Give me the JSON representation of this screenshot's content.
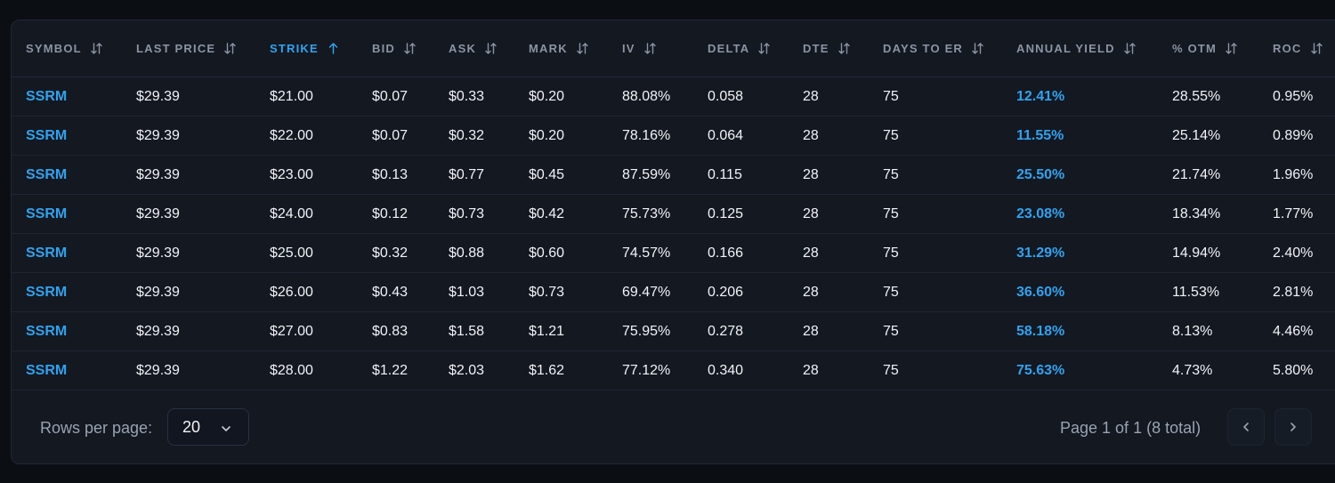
{
  "table": {
    "columns": [
      {
        "key": "symbol",
        "label": "SYMBOL",
        "sort": "none"
      },
      {
        "key": "last_price",
        "label": "LAST PRICE",
        "sort": "none"
      },
      {
        "key": "strike",
        "label": "STRIKE",
        "sort": "asc"
      },
      {
        "key": "bid",
        "label": "BID",
        "sort": "none"
      },
      {
        "key": "ask",
        "label": "ASK",
        "sort": "none"
      },
      {
        "key": "mark",
        "label": "MARK",
        "sort": "none"
      },
      {
        "key": "iv",
        "label": "IV",
        "sort": "none"
      },
      {
        "key": "delta",
        "label": "DELTA",
        "sort": "none"
      },
      {
        "key": "dte",
        "label": "DTE",
        "sort": "none"
      },
      {
        "key": "days_to_er",
        "label": "DAYS TO ER",
        "sort": "none"
      },
      {
        "key": "annual_yield",
        "label": "ANNUAL YIELD",
        "sort": "none"
      },
      {
        "key": "pct_otm",
        "label": "% OTM",
        "sort": "none"
      },
      {
        "key": "roc",
        "label": "ROC",
        "sort": "none"
      }
    ],
    "rows": [
      [
        "SSRM",
        "$29.39",
        "$21.00",
        "$0.07",
        "$0.33",
        "$0.20",
        "88.08%",
        "0.058",
        "28",
        "75",
        "12.41%",
        "28.55%",
        "0.95%"
      ],
      [
        "SSRM",
        "$29.39",
        "$22.00",
        "$0.07",
        "$0.32",
        "$0.20",
        "78.16%",
        "0.064",
        "28",
        "75",
        "11.55%",
        "25.14%",
        "0.89%"
      ],
      [
        "SSRM",
        "$29.39",
        "$23.00",
        "$0.13",
        "$0.77",
        "$0.45",
        "87.59%",
        "0.115",
        "28",
        "75",
        "25.50%",
        "21.74%",
        "1.96%"
      ],
      [
        "SSRM",
        "$29.39",
        "$24.00",
        "$0.12",
        "$0.73",
        "$0.42",
        "75.73%",
        "0.125",
        "28",
        "75",
        "23.08%",
        "18.34%",
        "1.77%"
      ],
      [
        "SSRM",
        "$29.39",
        "$25.00",
        "$0.32",
        "$0.88",
        "$0.60",
        "74.57%",
        "0.166",
        "28",
        "75",
        "31.29%",
        "14.94%",
        "2.40%"
      ],
      [
        "SSRM",
        "$29.39",
        "$26.00",
        "$0.43",
        "$1.03",
        "$0.73",
        "69.47%",
        "0.206",
        "28",
        "75",
        "36.60%",
        "11.53%",
        "2.81%"
      ],
      [
        "SSRM",
        "$29.39",
        "$27.00",
        "$0.83",
        "$1.58",
        "$1.21",
        "75.95%",
        "0.278",
        "28",
        "75",
        "58.18%",
        "8.13%",
        "4.46%"
      ],
      [
        "SSRM",
        "$29.39",
        "$28.00",
        "$1.22",
        "$2.03",
        "$1.62",
        "77.12%",
        "0.340",
        "28",
        "75",
        "75.63%",
        "4.73%",
        "5.80%"
      ]
    ]
  },
  "pagination": {
    "rows_per_page_label": "Rows per page:",
    "rows_per_page_value": "20",
    "page_info": "Page 1 of 1 (8 total)"
  },
  "colors": {
    "accent": "#2fa3ee",
    "background": "#0b0e13",
    "card": "#131821",
    "header_text": "#8b94a3"
  },
  "icons": {
    "sort": "sort-arrows-icon",
    "sort_asc": "arrow-up-icon",
    "dropdown": "chevron-down-icon",
    "prev": "chevron-left-icon",
    "next": "chevron-right-icon"
  }
}
